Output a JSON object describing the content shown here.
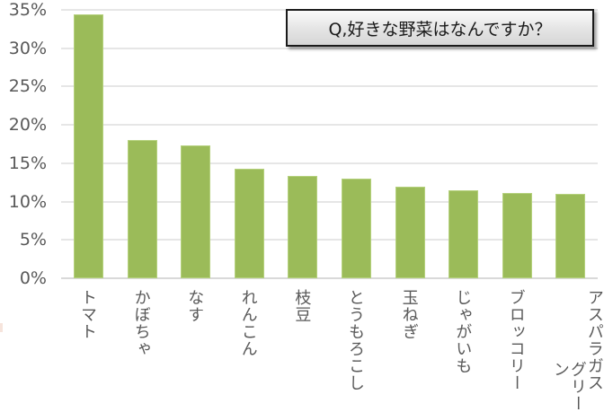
{
  "chart_data": {
    "type": "bar",
    "title": "Q,好きな野菜はなんですか？",
    "xlabel": "",
    "ylabel": "",
    "ylim": [
      0,
      35
    ],
    "y_ticks": [
      "0%",
      "5%",
      "10%",
      "15%",
      "20%",
      "25%",
      "30%",
      "35%"
    ],
    "grid": true,
    "legend": "none",
    "categories": [
      "トマト",
      "かぼちゃ",
      "なす",
      "れんこん",
      "枝豆",
      "とうもろこし",
      "玉ねぎ",
      "じゃがいも",
      "ブロッコリー",
      "グリーンアスパラガス"
    ],
    "category_lines": [
      [
        "トマト"
      ],
      [
        "かぼちゃ"
      ],
      [
        "なす"
      ],
      [
        "れんこん"
      ],
      [
        "枝豆"
      ],
      [
        "とうもろこし"
      ],
      [
        "玉ねぎ"
      ],
      [
        "じゃがいも"
      ],
      [
        "ブロッコリー"
      ],
      [
        "アスパラガス",
        "グリーン"
      ]
    ],
    "values": [
      34.4,
      18.0,
      17.3,
      14.3,
      13.3,
      13.0,
      11.9,
      11.5,
      11.1,
      11.0
    ],
    "unit": "%",
    "bar_color": "#9bbb59"
  }
}
